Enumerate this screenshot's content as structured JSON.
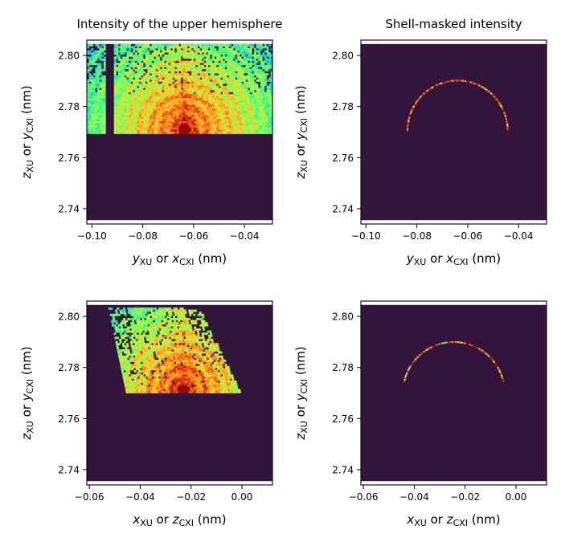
{
  "figure": {
    "background": "#ffffff",
    "colormap": "turbo",
    "mask_color": "#32143c"
  },
  "chart_data": [
    {
      "type": "heatmap",
      "title": "Intensity of the upper hemisphere",
      "xlabel": {
        "var1": "y",
        "sub1": "XU",
        "mid": " or ",
        "var2": "x",
        "sub2": "CXI",
        "unit": " (nm)"
      },
      "ylabel": {
        "var1": "z",
        "sub1": "XU",
        "mid": " or ",
        "var2": "y",
        "sub2": "CXI",
        "unit": " (nm)"
      },
      "xlim": [
        -0.102,
        -0.029
      ],
      "ylim": [
        2.734,
        2.806
      ],
      "xticks": [
        -0.1,
        -0.08,
        -0.06,
        -0.04
      ],
      "xtick_labels": [
        "−0.10",
        "−0.08",
        "−0.06",
        "−0.04"
      ],
      "yticks": [
        2.74,
        2.76,
        2.78,
        2.8
      ],
      "ytick_labels": [
        "2.74",
        "2.76",
        "2.78",
        "2.80"
      ],
      "data_extent": {
        "x": [
          -0.102,
          -0.029
        ],
        "y": [
          2.7355,
          2.8045
        ]
      },
      "content": "hemisphere",
      "region": {
        "y_min": 2.77,
        "x_min": -0.102,
        "x_max": -0.029
      },
      "peak": [
        -0.064,
        2.7715
      ],
      "gap": [
        -0.094,
        -0.0915
      ]
    },
    {
      "type": "heatmap",
      "title": "Shell-masked intensity",
      "xlabel": {
        "var1": "y",
        "sub1": "XU",
        "mid": " or ",
        "var2": "x",
        "sub2": "CXI",
        "unit": " (nm)"
      },
      "ylabel": {
        "var1": "z",
        "sub1": "XU",
        "mid": " or ",
        "var2": "y",
        "sub2": "CXI",
        "unit": " (nm)"
      },
      "xlim": [
        -0.102,
        -0.029
      ],
      "ylim": [
        2.734,
        2.806
      ],
      "xticks": [
        -0.1,
        -0.08,
        -0.06,
        -0.04
      ],
      "xtick_labels": [
        "−0.10",
        "−0.08",
        "−0.06",
        "−0.04"
      ],
      "yticks": [
        2.74,
        2.76,
        2.78,
        2.8
      ],
      "ytick_labels": [
        "2.74",
        "2.76",
        "2.78",
        "2.80"
      ],
      "data_extent": {
        "x": [
          -0.102,
          -0.029
        ],
        "y": [
          2.7355,
          2.8045
        ]
      },
      "content": "shell",
      "shell": {
        "center": [
          -0.064,
          2.7705
        ],
        "radius": 0.0197,
        "y_min": 2.7705
      }
    },
    {
      "type": "heatmap",
      "title": "",
      "xlabel": {
        "var1": "x",
        "sub1": "XU",
        "mid": " or ",
        "var2": "z",
        "sub2": "CXI",
        "unit": " (nm)"
      },
      "ylabel": {
        "var1": "z",
        "sub1": "XU",
        "mid": " or ",
        "var2": "y",
        "sub2": "CXI",
        "unit": " (nm)"
      },
      "xlim": [
        -0.061,
        0.012
      ],
      "ylim": [
        2.734,
        2.806
      ],
      "xticks": [
        -0.06,
        -0.04,
        -0.02,
        0.0
      ],
      "xtick_labels": [
        "−0.06",
        "−0.04",
        "−0.02",
        "0.00"
      ],
      "yticks": [
        2.74,
        2.76,
        2.78,
        2.8
      ],
      "ytick_labels": [
        "2.74",
        "2.76",
        "2.78",
        "2.80"
      ],
      "data_extent": {
        "x": [
          -0.061,
          0.012
        ],
        "y": [
          2.7355,
          2.8045
        ]
      },
      "content": "parallelogram",
      "region": {
        "y_min": 2.77,
        "y_max": 2.8035,
        "left": [
          [
            -0.0525,
            2.8035
          ],
          [
            -0.0455,
            2.77
          ]
        ],
        "right": [
          [
            -0.017,
            2.8035
          ],
          [
            -0.0005,
            2.77
          ]
        ]
      },
      "peak": [
        -0.0235,
        2.7715
      ]
    },
    {
      "type": "heatmap",
      "title": "",
      "xlabel": {
        "var1": "x",
        "sub1": "XU",
        "mid": " or ",
        "var2": "z",
        "sub2": "CXI",
        "unit": " (nm)"
      },
      "ylabel": {
        "var1": "z",
        "sub1": "XU",
        "mid": " or ",
        "var2": "y",
        "sub2": "CXI",
        "unit": " (nm)"
      },
      "xlim": [
        -0.061,
        0.012
      ],
      "ylim": [
        2.734,
        2.806
      ],
      "xticks": [
        -0.06,
        -0.04,
        -0.02,
        0.0
      ],
      "xtick_labels": [
        "−0.06",
        "−0.04",
        "−0.02",
        "0.00"
      ],
      "yticks": [
        2.74,
        2.76,
        2.78,
        2.8
      ],
      "ytick_labels": [
        "2.74",
        "2.76",
        "2.78",
        "2.80"
      ],
      "data_extent": {
        "x": [
          -0.061,
          0.012
        ],
        "y": [
          2.7355,
          2.8045
        ]
      },
      "content": "shell",
      "shell": {
        "center": [
          -0.0245,
          2.77
        ],
        "radius": 0.02,
        "y_min": 2.7745
      }
    }
  ]
}
